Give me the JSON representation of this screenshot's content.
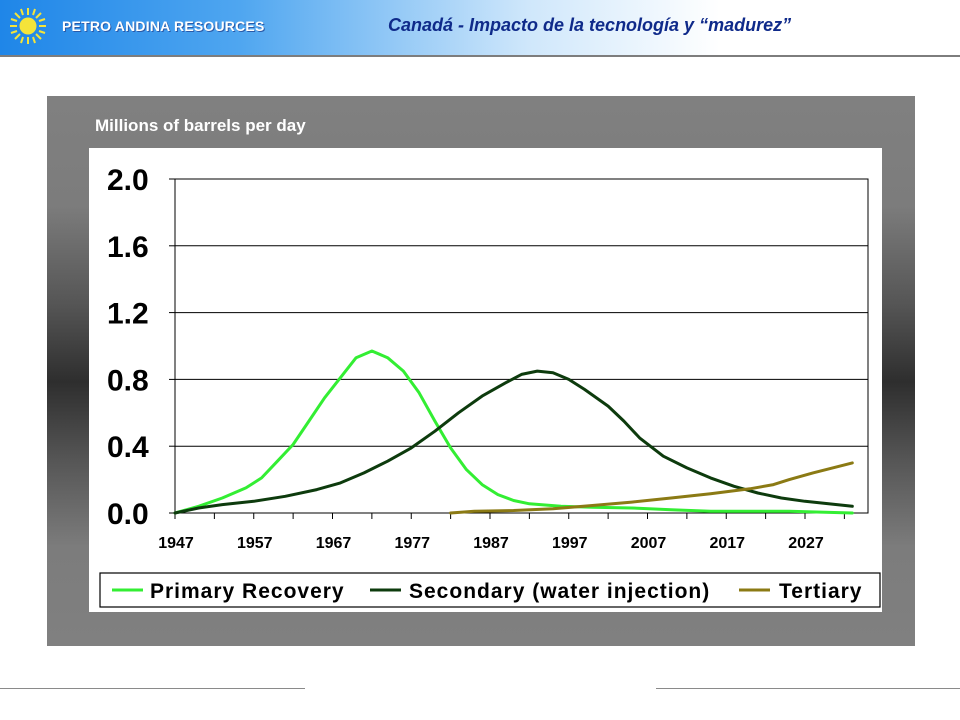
{
  "header": {
    "company": "PETRO ANDINA RESOURCES",
    "title": "Canadá - Impacto de la tecnología y “madurez”",
    "logo_icon": "sun-icon"
  },
  "colors": {
    "primary_series": "#33ee33",
    "secondary_series": "#0d3b0d",
    "tertiary_series": "#8b7a14",
    "title_text": "#0f2a8a"
  },
  "chart_data": {
    "type": "line",
    "title": "Millions of barrels per day",
    "xlabel": "",
    "ylabel": "",
    "xlim": [
      1947,
      2035
    ],
    "ylim": [
      0,
      2.0
    ],
    "yticks": [
      "0.0",
      "0.4",
      "0.8",
      "1.2",
      "1.6",
      "2.0"
    ],
    "ytick_values": [
      0,
      0.4,
      0.8,
      1.2,
      1.6,
      2.0
    ],
    "xticks": [
      "1947",
      "1957",
      "1967",
      "1977",
      "1987",
      "1997",
      "2007",
      "2017",
      "2027"
    ],
    "xtick_values": [
      1947,
      1957,
      1967,
      1977,
      1987,
      1997,
      2007,
      2017,
      2027
    ],
    "grid": "horizontal",
    "legend_position": "bottom",
    "series": [
      {
        "name": "Primary Recovery",
        "color": "#33ee33",
        "points": [
          [
            1947,
            0.0
          ],
          [
            1950,
            0.04
          ],
          [
            1953,
            0.09
          ],
          [
            1956,
            0.15
          ],
          [
            1958,
            0.21
          ],
          [
            1960,
            0.31
          ],
          [
            1962,
            0.41
          ],
          [
            1964,
            0.55
          ],
          [
            1966,
            0.69
          ],
          [
            1968,
            0.81
          ],
          [
            1970,
            0.93
          ],
          [
            1972,
            0.97
          ],
          [
            1974,
            0.93
          ],
          [
            1976,
            0.85
          ],
          [
            1978,
            0.72
          ],
          [
            1980,
            0.55
          ],
          [
            1982,
            0.39
          ],
          [
            1984,
            0.26
          ],
          [
            1986,
            0.17
          ],
          [
            1988,
            0.11
          ],
          [
            1990,
            0.075
          ],
          [
            1992,
            0.055
          ],
          [
            1996,
            0.04
          ],
          [
            2000,
            0.035
          ],
          [
            2005,
            0.03
          ],
          [
            2010,
            0.02
          ],
          [
            2015,
            0.01
          ],
          [
            2025,
            0.01
          ],
          [
            2033,
            0.0
          ]
        ]
      },
      {
        "name": "Secondary (water injection)",
        "color": "#0d3b0d",
        "points": [
          [
            1947,
            0.0
          ],
          [
            1950,
            0.03
          ],
          [
            1953,
            0.05
          ],
          [
            1957,
            0.07
          ],
          [
            1961,
            0.1
          ],
          [
            1965,
            0.14
          ],
          [
            1968,
            0.18
          ],
          [
            1971,
            0.24
          ],
          [
            1974,
            0.31
          ],
          [
            1977,
            0.39
          ],
          [
            1980,
            0.49
          ],
          [
            1983,
            0.6
          ],
          [
            1986,
            0.7
          ],
          [
            1989,
            0.78
          ],
          [
            1991,
            0.83
          ],
          [
            1993,
            0.85
          ],
          [
            1995,
            0.84
          ],
          [
            1997,
            0.8
          ],
          [
            1999,
            0.74
          ],
          [
            2002,
            0.64
          ],
          [
            2004,
            0.55
          ],
          [
            2006,
            0.45
          ],
          [
            2009,
            0.34
          ],
          [
            2012,
            0.27
          ],
          [
            2015,
            0.21
          ],
          [
            2018,
            0.16
          ],
          [
            2021,
            0.12
          ],
          [
            2024,
            0.09
          ],
          [
            2027,
            0.07
          ],
          [
            2030,
            0.055
          ],
          [
            2033,
            0.04
          ]
        ]
      },
      {
        "name": "Tertiary",
        "color": "#8b7a14",
        "points": [
          [
            1982,
            0.0
          ],
          [
            1985,
            0.01
          ],
          [
            1990,
            0.015
          ],
          [
            1995,
            0.025
          ],
          [
            2000,
            0.045
          ],
          [
            2005,
            0.065
          ],
          [
            2010,
            0.09
          ],
          [
            2015,
            0.115
          ],
          [
            2020,
            0.145
          ],
          [
            2023,
            0.17
          ],
          [
            2025,
            0.2
          ],
          [
            2028,
            0.24
          ],
          [
            2033,
            0.3
          ]
        ]
      }
    ]
  }
}
